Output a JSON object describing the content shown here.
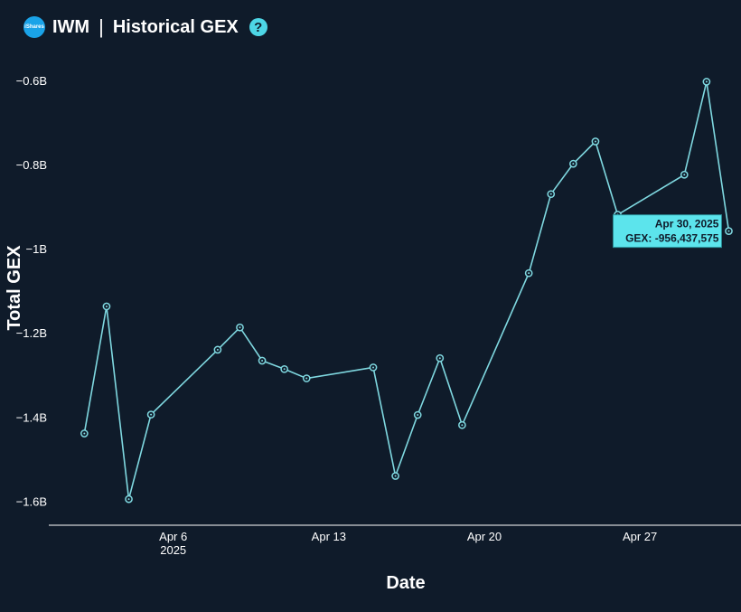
{
  "header": {
    "logo_text": "iShares",
    "ticker": "IWM",
    "separator": "|",
    "title": "Historical GEX",
    "help_label": "?"
  },
  "colors": {
    "background": "#0f1b2a",
    "line": "#7fd8e0",
    "tooltip_bg": "#5ce4ec",
    "help": "#4dd6e6",
    "logo": "#1aa3e8"
  },
  "chart_data": {
    "type": "line",
    "title": "IWM | Historical GEX",
    "xlabel": "Date",
    "ylabel": "Total GEX",
    "ylim": [
      -1.655,
      -0.54
    ],
    "y_unit": "B",
    "y_ticks": [
      -0.6,
      -0.8,
      -1.0,
      -1.2,
      -1.4,
      -1.6
    ],
    "y_tick_labels": [
      "−0.6B",
      "−0.8B",
      "−1B",
      "−1.2B",
      "−1.4B",
      "−1.6B"
    ],
    "x_ticks": [
      {
        "date": "2025-04-06",
        "label": "Apr 6",
        "sublabel": "2025"
      },
      {
        "date": "2025-04-13",
        "label": "Apr 13",
        "sublabel": ""
      },
      {
        "date": "2025-04-20",
        "label": "Apr 20",
        "sublabel": ""
      },
      {
        "date": "2025-04-27",
        "label": "Apr 27",
        "sublabel": ""
      }
    ],
    "series": [
      {
        "points": [
          {
            "x": "2025-04-02",
            "y": -1.437
          },
          {
            "x": "2025-04-03",
            "y": -1.135
          },
          {
            "x": "2025-04-04",
            "y": -1.593
          },
          {
            "x": "2025-04-05",
            "y": -1.392
          },
          {
            "x": "2025-04-08",
            "y": -1.238
          },
          {
            "x": "2025-04-09",
            "y": -1.185
          },
          {
            "x": "2025-04-10",
            "y": -1.264
          },
          {
            "x": "2025-04-11",
            "y": -1.284
          },
          {
            "x": "2025-04-12",
            "y": -1.306
          },
          {
            "x": "2025-04-15",
            "y": -1.28
          },
          {
            "x": "2025-04-16",
            "y": -1.538
          },
          {
            "x": "2025-04-17",
            "y": -1.393
          },
          {
            "x": "2025-04-18",
            "y": -1.258
          },
          {
            "x": "2025-04-19",
            "y": -1.417
          },
          {
            "x": "2025-04-22",
            "y": -1.056
          },
          {
            "x": "2025-04-23",
            "y": -0.868
          },
          {
            "x": "2025-04-24",
            "y": -0.796
          },
          {
            "x": "2025-04-25",
            "y": -0.743
          },
          {
            "x": "2025-04-26",
            "y": -0.917
          },
          {
            "x": "2025-04-29",
            "y": -0.822
          },
          {
            "x": "2025-04-30",
            "y": -0.601
          },
          {
            "x": "2025-05-01",
            "y": -0.956
          }
        ]
      }
    ],
    "tooltip": {
      "date": "Apr 30, 2025",
      "value_text": "GEX: -956,437,575"
    }
  }
}
